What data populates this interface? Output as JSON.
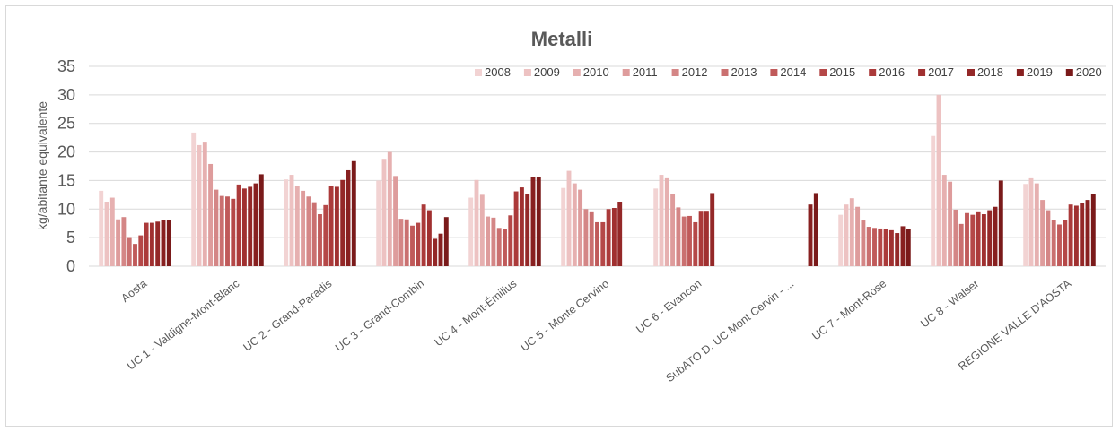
{
  "chart_data": {
    "type": "bar",
    "title": "Metalli",
    "xlabel": "",
    "ylabel": "kg/abitante equivalente",
    "ylim": [
      0,
      35
    ],
    "yticks": [
      0,
      5,
      10,
      15,
      20,
      25,
      30,
      35
    ],
    "grid": true,
    "legend_position": "top-right",
    "categories": [
      "Aosta",
      "UC 1 - Valdigne-Mont-Blanc",
      "UC 2 - Grand-Paradis",
      "UC 3 - Grand-Combin",
      "UC 4 - Mont-Émilius",
      "UC 5 - Monte Cervino",
      "UC 6 - Evancon",
      "SubATO D. UC Mont Cervin - ...",
      "UC 7 - Mont-Rose",
      "UC 8 - Walser",
      "REGIONE VALLE D'AOSTA"
    ],
    "series": [
      {
        "name": "2008",
        "color": "#f2d3d3",
        "values": [
          13.2,
          23.4,
          15.2,
          15.0,
          12.0,
          13.7,
          13.6,
          null,
          9.0,
          22.8,
          14.4
        ]
      },
      {
        "name": "2009",
        "color": "#edc2c2",
        "values": [
          11.3,
          21.2,
          16.0,
          18.8,
          15.1,
          16.7,
          16.0,
          null,
          10.8,
          30.0,
          15.4
        ]
      },
      {
        "name": "2010",
        "color": "#e6b0b0",
        "values": [
          12.0,
          21.8,
          14.1,
          20.0,
          12.5,
          14.5,
          15.4,
          null,
          11.9,
          16.0,
          14.5
        ]
      },
      {
        "name": "2011",
        "color": "#de9c9c",
        "values": [
          8.2,
          17.9,
          13.2,
          15.8,
          8.7,
          13.4,
          12.7,
          null,
          10.4,
          14.8,
          11.6
        ]
      },
      {
        "name": "2012",
        "color": "#d48686",
        "values": [
          8.6,
          13.4,
          12.2,
          8.3,
          8.5,
          10.0,
          10.3,
          null,
          8.0,
          9.9,
          9.8
        ]
      },
      {
        "name": "2013",
        "color": "#ca7070",
        "values": [
          5.1,
          12.3,
          11.2,
          8.2,
          6.7,
          9.6,
          8.7,
          null,
          6.9,
          7.4,
          8.1
        ]
      },
      {
        "name": "2014",
        "color": "#c05a5a",
        "values": [
          3.9,
          12.2,
          9.1,
          7.1,
          6.5,
          7.7,
          8.8,
          null,
          6.7,
          9.3,
          7.3
        ]
      },
      {
        "name": "2015",
        "color": "#b54848",
        "values": [
          5.4,
          11.8,
          10.7,
          7.6,
          8.9,
          7.7,
          7.7,
          null,
          6.6,
          9.0,
          8.1
        ]
      },
      {
        "name": "2016",
        "color": "#ab3a3a",
        "values": [
          7.6,
          14.3,
          14.1,
          10.8,
          13.1,
          10.0,
          9.7,
          null,
          6.5,
          9.6,
          10.8
        ]
      },
      {
        "name": "2017",
        "color": "#a03030",
        "values": [
          7.6,
          13.6,
          13.9,
          9.8,
          13.8,
          10.2,
          9.7,
          null,
          6.3,
          9.1,
          10.6
        ]
      },
      {
        "name": "2018",
        "color": "#942828",
        "values": [
          7.8,
          13.9,
          15.1,
          4.8,
          12.6,
          11.3,
          12.8,
          null,
          5.8,
          9.8,
          11.0
        ]
      },
      {
        "name": "2019",
        "color": "#882020",
        "values": [
          8.1,
          14.5,
          16.8,
          5.7,
          15.6,
          null,
          null,
          10.8,
          7.0,
          10.4,
          11.6
        ]
      },
      {
        "name": "2020",
        "color": "#7a1a1a",
        "values": [
          8.1,
          16.1,
          18.4,
          8.6,
          15.6,
          null,
          null,
          12.8,
          6.5,
          15.0,
          12.6
        ]
      }
    ]
  }
}
